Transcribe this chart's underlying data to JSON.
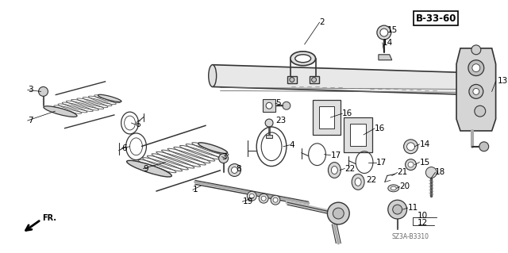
{
  "bg_color": "#ffffff",
  "fig_width": 6.4,
  "fig_height": 3.19,
  "dpi": 100,
  "diagram_code": "B-33-60",
  "catalog_code": "SZ3A-B3310",
  "lc": "#000000"
}
